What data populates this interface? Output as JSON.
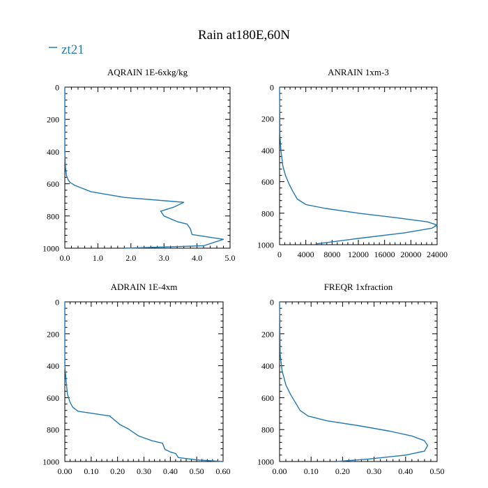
{
  "title": "Rain at180E,60N",
  "legend": {
    "label": "zt21",
    "color": "#2a7ab0"
  },
  "line_color": "#1f77b4",
  "chart_data": [
    {
      "type": "line",
      "title": "AQRAIN  1E-6xkg/kg",
      "xlim": [
        0,
        5.0
      ],
      "ylim": [
        1000,
        0
      ],
      "xticks": [
        0,
        1,
        2,
        3,
        4,
        5
      ],
      "xtick_labels": [
        "0.0",
        "1.0",
        "2.0",
        "3.0",
        "4.0",
        "5.0"
      ],
      "yticks": [
        0,
        200,
        400,
        600,
        800,
        1000
      ],
      "ytick_labels": [
        "0",
        "200",
        "400",
        "600",
        "800",
        "1000"
      ],
      "series": [
        {
          "name": "zt21",
          "x": [
            0,
            0.0,
            0.02,
            0.05,
            0.1,
            0.15,
            0.3,
            0.8,
            1.8,
            3.6,
            3.3,
            2.9,
            3.0,
            3.4,
            3.7,
            3.8,
            3.85,
            4.8,
            4.2,
            1.8
          ],
          "y": [
            0,
            400,
            500,
            550,
            575,
            590,
            610,
            650,
            685,
            715,
            745,
            770,
            800,
            835,
            850,
            880,
            915,
            945,
            985,
            1000
          ]
        }
      ]
    },
    {
      "type": "line",
      "title": "ANRAIN  1xm-3",
      "xlim": [
        0,
        24000
      ],
      "ylim": [
        1000,
        0
      ],
      "xticks": [
        0,
        4000,
        8000,
        12000,
        16000,
        20000,
        24000
      ],
      "xtick_labels": [
        "0",
        "4000",
        "8000",
        "12000",
        "16000",
        "20000",
        "24000"
      ],
      "yticks": [
        0,
        200,
        400,
        600,
        800,
        1000
      ],
      "ytick_labels": [
        "0",
        "200",
        "400",
        "600",
        "800",
        "1000"
      ],
      "series": [
        {
          "name": "zt21",
          "x": [
            0,
            50,
            200,
            500,
            900,
            1400,
            2000,
            2700,
            4000,
            7000,
            12000,
            18000,
            22500,
            24000,
            23200,
            19000,
            12000,
            5500
          ],
          "y": [
            0,
            300,
            400,
            500,
            560,
            610,
            660,
            710,
            745,
            770,
            800,
            830,
            855,
            875,
            895,
            925,
            960,
            995
          ]
        }
      ]
    },
    {
      "type": "line",
      "title": "ADRAIN  1E-4xm",
      "xlim": [
        0,
        0.6
      ],
      "ylim": [
        1000,
        0
      ],
      "xticks": [
        0,
        0.1,
        0.2,
        0.3,
        0.4,
        0.5,
        0.6
      ],
      "xtick_labels": [
        "0.00",
        "0.10",
        "0.20",
        "0.30",
        "0.40",
        "0.50",
        "0.60"
      ],
      "yticks": [
        0,
        200,
        400,
        600,
        800,
        1000
      ],
      "ytick_labels": [
        "0",
        "200",
        "400",
        "600",
        "800",
        "1000"
      ],
      "series": [
        {
          "name": "zt21",
          "x": [
            0,
            0.0,
            0.005,
            0.01,
            0.02,
            0.03,
            0.05,
            0.17,
            0.21,
            0.24,
            0.28,
            0.33,
            0.37,
            0.38,
            0.4,
            0.42,
            0.43,
            0.5,
            0.6
          ],
          "y": [
            0,
            400,
            500,
            580,
            630,
            660,
            685,
            715,
            770,
            795,
            840,
            870,
            885,
            925,
            940,
            950,
            975,
            990,
            1000
          ]
        }
      ]
    },
    {
      "type": "line",
      "title": "FREQR  1xfraction",
      "xlim": [
        0,
        0.5
      ],
      "ylim": [
        1000,
        0
      ],
      "xticks": [
        0,
        0.1,
        0.2,
        0.3,
        0.4,
        0.5
      ],
      "xtick_labels": [
        "0.00",
        "0.10",
        "0.20",
        "0.30",
        "0.40",
        "0.50"
      ],
      "yticks": [
        0,
        200,
        400,
        600,
        800,
        1000
      ],
      "ytick_labels": [
        "0",
        "200",
        "400",
        "600",
        "800",
        "1000"
      ],
      "series": [
        {
          "name": "zt21",
          "x": [
            0,
            0.002,
            0.008,
            0.02,
            0.035,
            0.05,
            0.065,
            0.09,
            0.15,
            0.25,
            0.35,
            0.42,
            0.46,
            0.47,
            0.46,
            0.4,
            0.28,
            0.18
          ],
          "y": [
            0,
            330,
            430,
            520,
            580,
            630,
            680,
            715,
            745,
            775,
            810,
            840,
            870,
            900,
            935,
            960,
            985,
            1000
          ]
        }
      ]
    }
  ]
}
